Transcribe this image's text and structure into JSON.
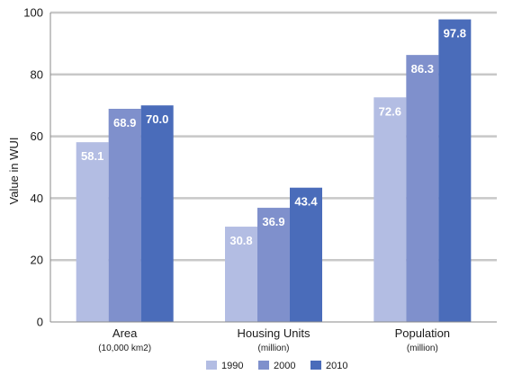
{
  "chart_data": {
    "type": "bar",
    "ylabel": "Value in WUI",
    "ylim": [
      0,
      100
    ],
    "yticks": [
      0,
      20,
      40,
      60,
      80,
      100
    ],
    "grid": true,
    "legend_position": "bottom",
    "categories": [
      "Area",
      "Housing Units",
      "Population"
    ],
    "category_sublabels": [
      "(10,000 km2)",
      "(million)",
      "(million)"
    ],
    "series": [
      {
        "name": "1990",
        "color": "#b3bde3",
        "values": [
          58.1,
          30.8,
          72.6
        ]
      },
      {
        "name": "2000",
        "color": "#7f90cc",
        "values": [
          68.9,
          36.9,
          86.3
        ]
      },
      {
        "name": "2010",
        "color": "#4a6cba",
        "values": [
          70.0,
          43.4,
          97.8
        ]
      }
    ],
    "data_labels": [
      [
        "58.1",
        "30.8",
        "72.6"
      ],
      [
        "68.9",
        "36.9",
        "86.3"
      ],
      [
        "70.0",
        "43.4",
        "97.8"
      ]
    ],
    "colors": {
      "grid": "#c8c8c8",
      "axis": "#8a8a8a",
      "label": "#ffffff"
    }
  }
}
